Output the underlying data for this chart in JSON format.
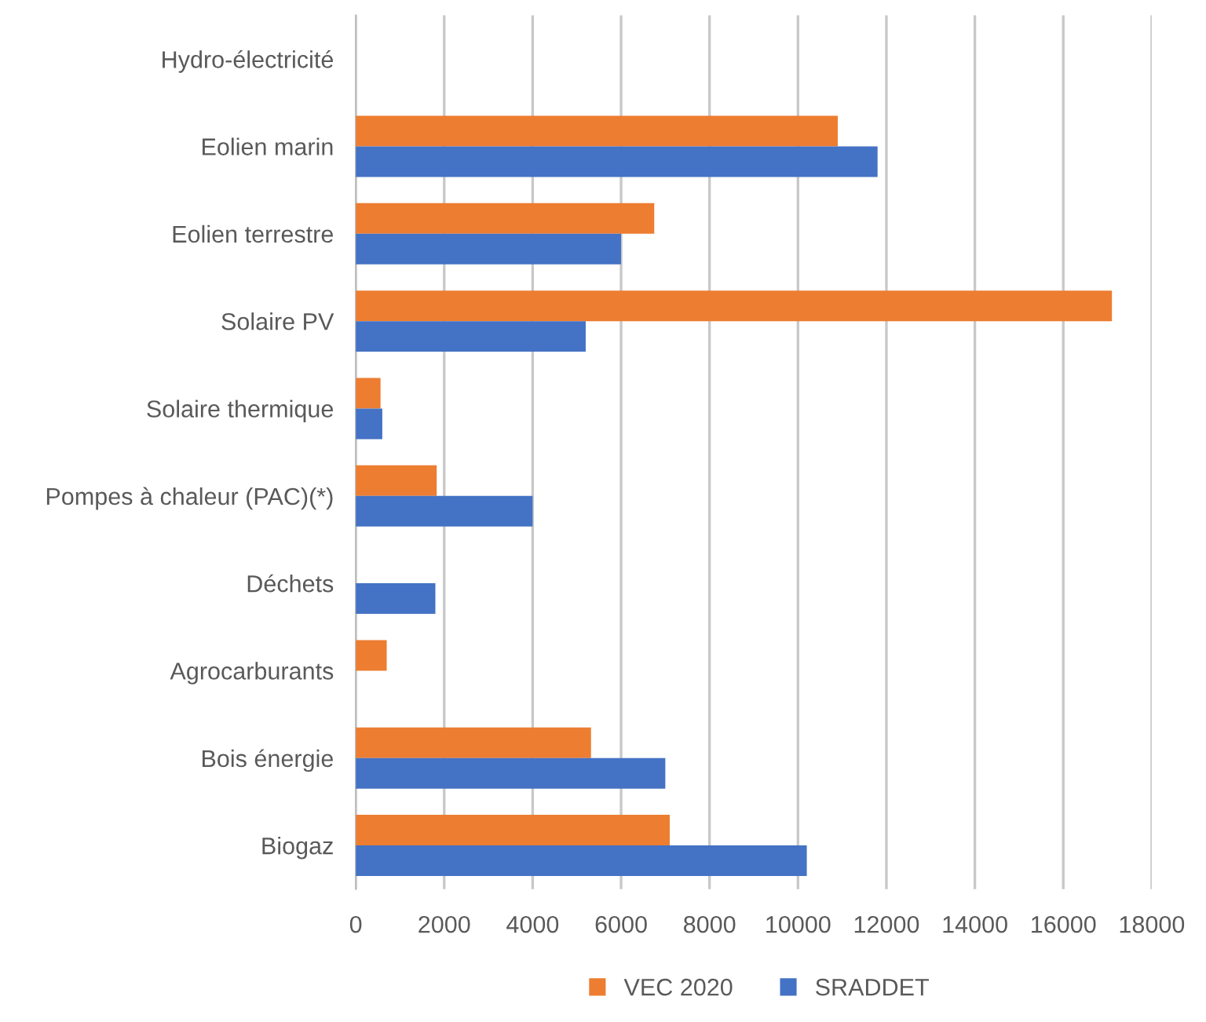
{
  "chart_data": {
    "type": "bar",
    "orientation": "horizontal",
    "categories": [
      "Hydro-électricité",
      "Eolien marin",
      "Eolien terrestre",
      "Solaire PV",
      "Solaire thermique",
      "Pompes à chaleur (PAC)(*)",
      "Déchets",
      "Agrocarburants",
      "Bois énergie",
      "Biogaz"
    ],
    "series": [
      {
        "name": "VEC 2020",
        "color": "#ed7d31",
        "values": [
          null,
          10900,
          6750,
          17100,
          560,
          1830,
          null,
          700,
          5320,
          7100
        ]
      },
      {
        "name": "SRADDET",
        "color": "#4472c4",
        "values": [
          null,
          11800,
          6000,
          5200,
          600,
          4000,
          1800,
          null,
          7000,
          10200
        ]
      }
    ],
    "xlim": [
      0,
      18000
    ],
    "xticks": [
      0,
      2000,
      4000,
      6000,
      8000,
      10000,
      12000,
      14000,
      16000,
      18000
    ],
    "grid": "x",
    "legend": "bottom"
  }
}
